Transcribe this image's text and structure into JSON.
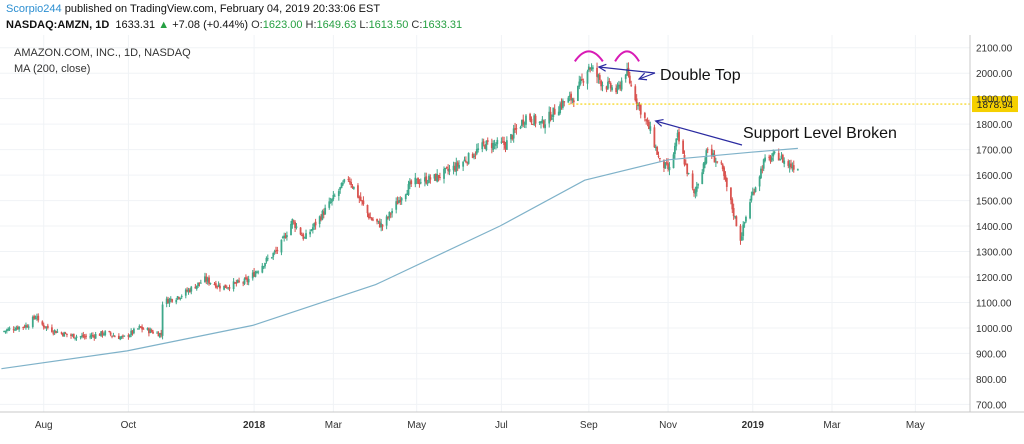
{
  "header": {
    "user": "Scorpio244",
    "published_text": "published on TradingView.com, February 04, 2019 20:33:06 EST",
    "symbol": "NASDAQ:AMZN, 1D",
    "last": "1633.31",
    "change_arrow": "▲",
    "change": "+7.08 (+0.44%)",
    "o_label": "O:",
    "o_value": "1623.00",
    "h_label": "H:",
    "h_value": "1649.63",
    "l_label": "L:",
    "l_value": "1613.50",
    "c_label": "C:",
    "c_value": "1633.31"
  },
  "legend": {
    "title": "AMAZON.COM, INC., 1D, NASDAQ",
    "indicator": "MA (200, close)"
  },
  "annotations": {
    "double_top": "Double Top",
    "support_broken": "Support Level Broken",
    "support_price": "1878.94"
  },
  "colors": {
    "up": "#3ea88a",
    "down": "#d9534f",
    "ma": "#7fb2c9",
    "support": "#f5d000",
    "arc": "#d81bb5",
    "arrow": "#2a2aa0"
  },
  "chart_data": {
    "type": "candlestick",
    "x_ticks": [
      "Aug",
      "Oct",
      "2018",
      "Mar",
      "May",
      "Jul",
      "Sep",
      "Nov",
      "2019",
      "Mar",
      "May"
    ],
    "y_ticks": [
      700,
      800,
      900,
      1000,
      1100,
      1200,
      1300,
      1400,
      1500,
      1600,
      1700,
      1800,
      1900,
      2000,
      2100
    ],
    "y_tick_labels": [
      "700.00",
      "800.00",
      "900.00",
      "1000.00",
      "1100.00",
      "1200.00",
      "1300.00",
      "1400.00",
      "1500.00",
      "1600.00",
      "1700.00",
      "1800.00",
      "1900.00",
      "2000.00",
      "2100.00"
    ],
    "ylim": [
      670,
      2150
    ],
    "xlim": [
      "2017-06-30",
      "2019-06-10"
    ],
    "x_tick_dates": [
      "2017-08-01",
      "2017-10-02",
      "2018-01-02",
      "2018-03-01",
      "2018-05-01",
      "2018-07-02",
      "2018-09-04",
      "2018-11-01",
      "2019-01-02",
      "2019-03-01",
      "2019-05-01"
    ],
    "series": [
      {
        "name": "AMZN close (approx.)",
        "points": [
          [
            "2017-07-01",
            985
          ],
          [
            "2017-07-10",
            1000
          ],
          [
            "2017-07-20",
            1010
          ],
          [
            "2017-07-27",
            1050
          ],
          [
            "2017-07-28",
            1020
          ],
          [
            "2017-08-08",
            990
          ],
          [
            "2017-08-20",
            970
          ],
          [
            "2017-09-01",
            965
          ],
          [
            "2017-09-15",
            980
          ],
          [
            "2017-09-28",
            960
          ],
          [
            "2017-10-10",
            1000
          ],
          [
            "2017-10-26",
            975
          ],
          [
            "2017-10-27",
            1100
          ],
          [
            "2017-11-10",
            1130
          ],
          [
            "2017-11-27",
            1190
          ],
          [
            "2017-12-10",
            1160
          ],
          [
            "2017-12-28",
            1185
          ],
          [
            "2018-01-10",
            1260
          ],
          [
            "2018-01-20",
            1310
          ],
          [
            "2018-01-30",
            1420
          ],
          [
            "2018-02-08",
            1350
          ],
          [
            "2018-02-20",
            1440
          ],
          [
            "2018-03-12",
            1590
          ],
          [
            "2018-03-28",
            1430
          ],
          [
            "2018-04-06",
            1400
          ],
          [
            "2018-04-20",
            1520
          ],
          [
            "2018-04-28",
            1570
          ],
          [
            "2018-05-15",
            1590
          ],
          [
            "2018-06-01",
            1640
          ],
          [
            "2018-06-20",
            1720
          ],
          [
            "2018-07-05",
            1720
          ],
          [
            "2018-07-20",
            1830
          ],
          [
            "2018-08-01",
            1800
          ],
          [
            "2018-08-15",
            1880
          ],
          [
            "2018-08-25",
            1910
          ],
          [
            "2018-09-04",
            2030
          ],
          [
            "2018-09-14",
            1960
          ],
          [
            "2018-09-25",
            1930
          ],
          [
            "2018-10-01",
            2010
          ],
          [
            "2018-10-10",
            1880
          ],
          [
            "2018-10-20",
            1760
          ],
          [
            "2018-10-26",
            1650
          ],
          [
            "2018-11-02",
            1620
          ],
          [
            "2018-11-08",
            1750
          ],
          [
            "2018-11-20",
            1520
          ],
          [
            "2018-11-30",
            1700
          ],
          [
            "2018-12-10",
            1630
          ],
          [
            "2018-12-24",
            1350
          ],
          [
            "2018-12-31",
            1500
          ],
          [
            "2019-01-10",
            1650
          ],
          [
            "2019-01-20",
            1680
          ],
          [
            "2019-01-28",
            1640
          ],
          [
            "2019-02-04",
            1633
          ]
        ]
      },
      {
        "name": "MA (200, close)",
        "points": [
          [
            "2017-07-01",
            840
          ],
          [
            "2017-10-01",
            910
          ],
          [
            "2018-01-01",
            1010
          ],
          [
            "2018-04-01",
            1170
          ],
          [
            "2018-07-01",
            1400
          ],
          [
            "2018-09-01",
            1580
          ],
          [
            "2018-11-01",
            1660
          ],
          [
            "2019-01-01",
            1690
          ],
          [
            "2019-02-04",
            1705
          ]
        ]
      }
    ],
    "support_level": 1878.94
  }
}
